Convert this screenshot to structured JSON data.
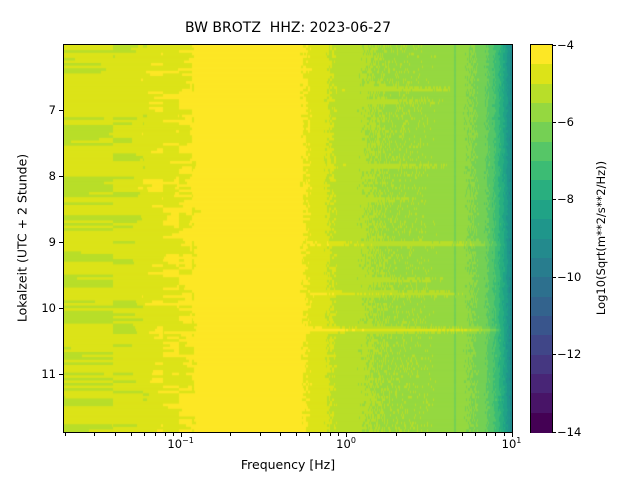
{
  "title": "BW BROTZ  HHZ: 2023-06-27",
  "xlabel": "Frequency [Hz]",
  "ylabel": "Lokalzeit (UTC + 2 Stunde)",
  "axes": {
    "x": {
      "scale": "log",
      "min_hz": 0.0196,
      "max_hz": 10,
      "major_ticks": [
        0.1,
        1,
        10
      ],
      "major_tick_labels": [
        {
          "base": "10",
          "exp": "−1"
        },
        {
          "base": "10",
          "exp": "0"
        },
        {
          "base": "10",
          "exp": "1"
        }
      ]
    },
    "y": {
      "min_hours": 6.0,
      "max_hours": 11.88,
      "ticks": [
        7,
        8,
        9,
        10,
        11
      ],
      "tick_labels": [
        "7",
        "8",
        "9",
        "10",
        "11"
      ]
    }
  },
  "colorbar": {
    "label": "Log10(Sqrt(m**2/s**2/Hz))",
    "vmin": -14,
    "vmax": -4,
    "ticks": [
      -4,
      -6,
      -8,
      -10,
      -12,
      -14
    ],
    "tick_labels": [
      "−4",
      "−6",
      "−8",
      "−10",
      "−12",
      "−14"
    ],
    "n_levels": 20,
    "colors_low_to_high": [
      "#440154",
      "#481467",
      "#482576",
      "#453781",
      "#404688",
      "#39558c",
      "#33638d",
      "#2d708e",
      "#287d8e",
      "#238a8d",
      "#1f968b",
      "#20a386",
      "#29af7f",
      "#3cbc74",
      "#56c667",
      "#75d054",
      "#95d840",
      "#b8de29",
      "#dce318",
      "#fde725"
    ]
  },
  "chart_data": {
    "type": "heatmap",
    "title": "BW BROTZ  HHZ: 2023-06-27",
    "xlabel": "Frequency [Hz]",
    "ylabel": "Lokalzeit (UTC + 2 Stunde)",
    "x_scale": "log",
    "x_range_hz": [
      0.0196,
      10
    ],
    "y_range_hours": [
      6.0,
      11.88
    ],
    "value_units": "Log10(Sqrt(m**2/s**2/Hz))",
    "value_range": [
      -14,
      -4
    ],
    "colormap": "viridis-20-discrete",
    "frequency_bin_hz": 0.0195,
    "n_time_rows": 150,
    "spectral_profile": {
      "freqs_hz": [
        0.0196,
        0.03,
        0.05,
        0.07,
        0.1,
        0.13,
        0.16,
        0.2,
        0.35,
        0.45,
        0.55,
        0.65,
        0.8,
        1.0,
        1.5,
        2.0,
        3.0,
        4.0,
        5.0,
        6.0,
        7.0,
        8.0,
        9.0,
        9.7,
        10.0
      ],
      "values": [
        -4.95,
        -4.92,
        -4.88,
        -4.65,
        -4.55,
        -4.35,
        -4.12,
        -3.95,
        -3.95,
        -4.15,
        -4.45,
        -4.7,
        -5.0,
        -5.3,
        -5.5,
        -5.6,
        -5.65,
        -5.7,
        -5.8,
        -6.05,
        -6.4,
        -7.1,
        -8.1,
        -8.9,
        -9.3
      ]
    },
    "noise_bands": [
      {
        "f_max_hz": 0.12,
        "amplitude": 0.3
      },
      {
        "f_max_hz": 0.22,
        "amplitude": 0.15
      },
      {
        "f_max_hz": 0.5,
        "amplitude": 0.05
      },
      {
        "f_max_hz": 2.0,
        "amplitude": 0.13
      },
      {
        "f_max_hz": 10.1,
        "amplitude": 0.18
      }
    ],
    "events": [
      {
        "time_hours": 6.67,
        "f_min_hz": 0.8,
        "f_max_hz": 5.0,
        "amplitude": 0.35
      },
      {
        "time_hours": 6.86,
        "f_min_hz": 0.9,
        "f_max_hz": 4.0,
        "amplitude": 0.28
      },
      {
        "time_hours": 7.84,
        "f_min_hz": 0.8,
        "f_max_hz": 4.5,
        "amplitude": 0.33
      },
      {
        "time_hours": 8.35,
        "f_min_hz": 1.0,
        "f_max_hz": 3.0,
        "amplitude": 0.22
      },
      {
        "time_hours": 9.02,
        "f_min_hz": 0.55,
        "f_max_hz": 9.0,
        "amplitude": 0.55
      },
      {
        "time_hours": 9.57,
        "f_min_hz": 1.2,
        "f_max_hz": 4.0,
        "amplitude": 0.28
      },
      {
        "time_hours": 9.78,
        "f_min_hz": 0.55,
        "f_max_hz": 5.5,
        "amplitude": 0.5
      },
      {
        "time_hours": 10.33,
        "f_min_hz": 0.5,
        "f_max_hz": 9.5,
        "amplitude": 0.85
      }
    ],
    "vertical_artifact": {
      "freq_hz": 4.55,
      "amplitude": -0.45
    }
  }
}
